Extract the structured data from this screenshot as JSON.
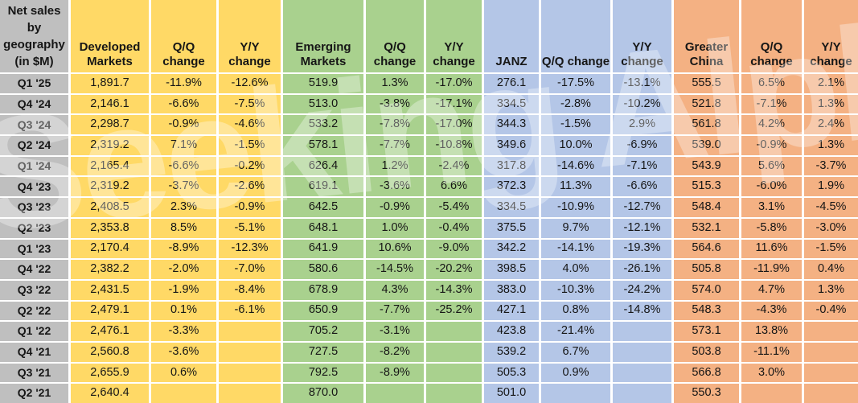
{
  "title": "Net sales\nby\ngeography\n(in $M)",
  "watermark": "Seeking Alpha",
  "colors": {
    "label_bg": "#BFBFBF",
    "developed_bg": "#FFD966",
    "emerging_bg": "#A9D18E",
    "janz_bg": "#B4C6E7",
    "china_bg": "#F4B183",
    "grid_bg": "#FFFFFF",
    "text": "#161616"
  },
  "chart_data": {
    "type": "table",
    "title": "Net sales by geography (in $M)",
    "column_groups": [
      {
        "name": "Developed Markets",
        "color": "#FFD966"
      },
      {
        "name": "Emerging Markets",
        "color": "#A9D18E"
      },
      {
        "name": "JANZ",
        "color": "#B4C6E7"
      },
      {
        "name": "Greater China",
        "color": "#F4B183"
      }
    ],
    "columns": [
      "Developed Markets",
      "Q/Q change",
      "Y/Y change",
      "Emerging Markets",
      "Q/Q change",
      "Y/Y change",
      "JANZ",
      "Q/Q change",
      "Y/Y change",
      "Greater China",
      "Q/Q change",
      "Y/Y change"
    ],
    "row_labels": [
      "Q1 '25",
      "Q4 '24",
      "Q3 '24",
      "Q2 '24",
      "Q1 '24",
      "Q4 '23",
      "Q3 '23",
      "Q2 '23",
      "Q1 '23",
      "Q4 '22",
      "Q3 '22",
      "Q2 '22",
      "Q1 '22",
      "Q4 '21",
      "Q3 '21",
      "Q2 '21"
    ],
    "rows": [
      [
        "1,891.7",
        "-11.9%",
        "-12.6%",
        "519.9",
        "1.3%",
        "-17.0%",
        "276.1",
        "-17.5%",
        "-13.1%",
        "555.5",
        "6.5%",
        "2.1%"
      ],
      [
        "2,146.1",
        "-6.6%",
        "-7.5%",
        "513.0",
        "-3.8%",
        "-17.1%",
        "334.5",
        "-2.8%",
        "-10.2%",
        "521.8",
        "-7.1%",
        "1.3%"
      ],
      [
        "2,298.7",
        "-0.9%",
        "-4.6%",
        "533.2",
        "-7.8%",
        "-17.0%",
        "344.3",
        "-1.5%",
        "2.9%",
        "561.8",
        "4.2%",
        "2.4%"
      ],
      [
        "2,319.2",
        "7.1%",
        "-1.5%",
        "578.1",
        "-7.7%",
        "-10.8%",
        "349.6",
        "10.0%",
        "-6.9%",
        "539.0",
        "-0.9%",
        "1.3%"
      ],
      [
        "2,165.4",
        "-6.6%",
        "-0.2%",
        "626.4",
        "1.2%",
        "-2.4%",
        "317.8",
        "-14.6%",
        "-7.1%",
        "543.9",
        "5.6%",
        "-3.7%"
      ],
      [
        "2,319.2",
        "-3.7%",
        "-2.6%",
        "619.1",
        "-3.6%",
        "6.6%",
        "372.3",
        "11.3%",
        "-6.6%",
        "515.3",
        "-6.0%",
        "1.9%"
      ],
      [
        "2,408.5",
        "2.3%",
        "-0.9%",
        "642.5",
        "-0.9%",
        "-5.4%",
        "334.5",
        "-10.9%",
        "-12.7%",
        "548.4",
        "3.1%",
        "-4.5%"
      ],
      [
        "2,353.8",
        "8.5%",
        "-5.1%",
        "648.1",
        "1.0%",
        "-0.4%",
        "375.5",
        "9.7%",
        "-12.1%",
        "532.1",
        "-5.8%",
        "-3.0%"
      ],
      [
        "2,170.4",
        "-8.9%",
        "-12.3%",
        "641.9",
        "10.6%",
        "-9.0%",
        "342.2",
        "-14.1%",
        "-19.3%",
        "564.6",
        "11.6%",
        "-1.5%"
      ],
      [
        "2,382.2",
        "-2.0%",
        "-7.0%",
        "580.6",
        "-14.5%",
        "-20.2%",
        "398.5",
        "4.0%",
        "-26.1%",
        "505.8",
        "-11.9%",
        "0.4%"
      ],
      [
        "2,431.5",
        "-1.9%",
        "-8.4%",
        "678.9",
        "4.3%",
        "-14.3%",
        "383.0",
        "-10.3%",
        "-24.2%",
        "574.0",
        "4.7%",
        "1.3%"
      ],
      [
        "2,479.1",
        "0.1%",
        "-6.1%",
        "650.9",
        "-7.7%",
        "-25.2%",
        "427.1",
        "0.8%",
        "-14.8%",
        "548.3",
        "-4.3%",
        "-0.4%"
      ],
      [
        "2,476.1",
        "-3.3%",
        "",
        "705.2",
        "-3.1%",
        "",
        "423.8",
        "-21.4%",
        "",
        "573.1",
        "13.8%",
        ""
      ],
      [
        "2,560.8",
        "-3.6%",
        "",
        "727.5",
        "-8.2%",
        "",
        "539.2",
        "6.7%",
        "",
        "503.8",
        "-11.1%",
        ""
      ],
      [
        "2,655.9",
        "0.6%",
        "",
        "792.5",
        "-8.9%",
        "",
        "505.3",
        "0.9%",
        "",
        "566.8",
        "3.0%",
        ""
      ],
      [
        "2,640.4",
        "",
        "",
        "870.0",
        "",
        "",
        "501.0",
        "",
        "",
        "550.3",
        "",
        ""
      ]
    ]
  }
}
